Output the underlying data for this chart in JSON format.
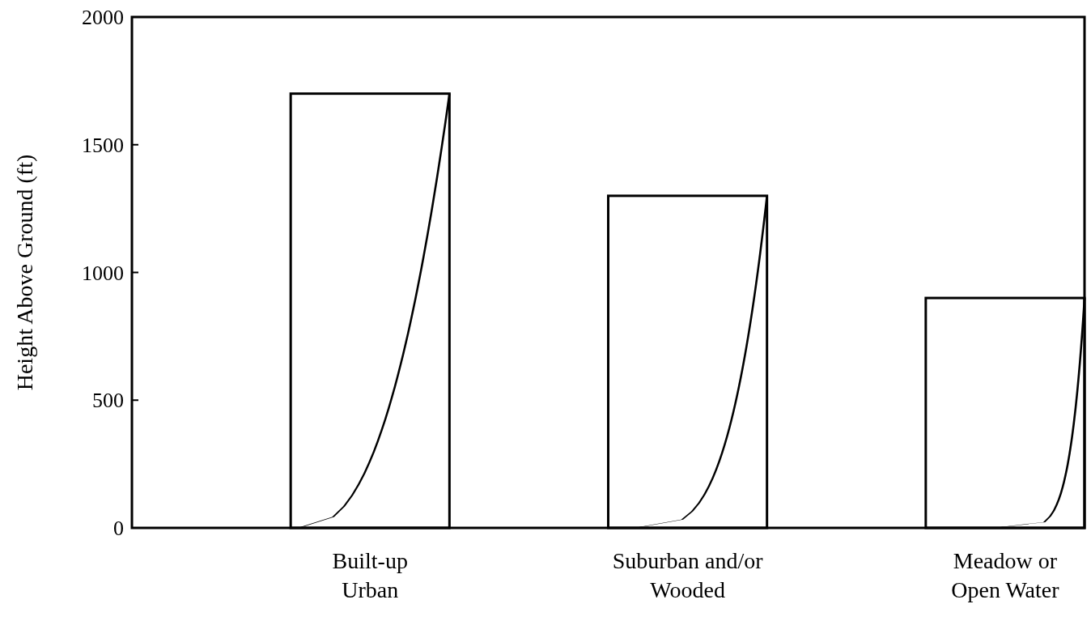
{
  "chart_data": {
    "type": "bar",
    "ylabel": "Height Above Ground (ft)",
    "categories": [
      "Built-up\nUrban",
      "Suburban and/or\nWooded",
      "Meadow or\nOpen Water"
    ],
    "values": [
      1700,
      1300,
      900
    ],
    "color": "#000000",
    "ylim": [
      0,
      2000
    ],
    "yticks": [
      0,
      500,
      1000,
      1500,
      2000
    ],
    "grid": false
  }
}
